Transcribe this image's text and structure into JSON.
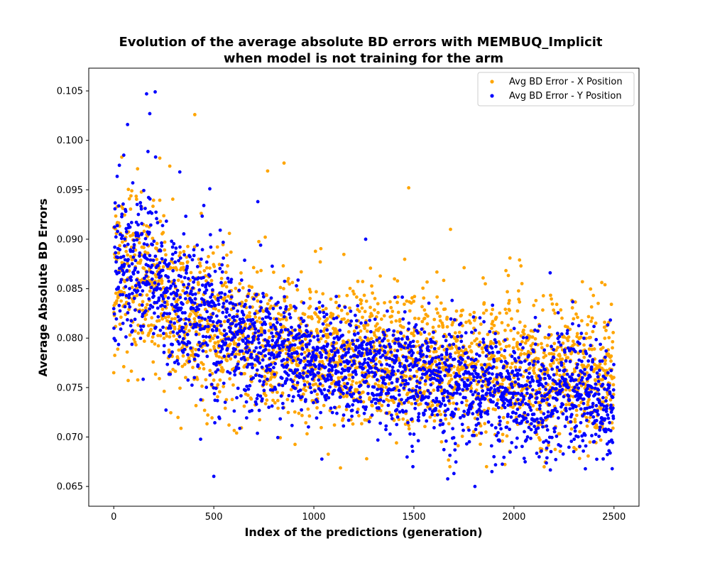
{
  "chart_data": {
    "type": "scatter",
    "title_lines": [
      "Evolution of the average absolute BD errors with MEMBUQ_Implicit",
      "when model is not training for the arm"
    ],
    "xlabel": "Index of the predictions (generation)",
    "ylabel": "Average Absolute BD Errors",
    "xlim": [
      -125,
      2625
    ],
    "ylim": [
      0.063,
      0.1073
    ],
    "xticks": [
      0,
      500,
      1000,
      1500,
      2000,
      2500
    ],
    "xtick_labels": [
      "0",
      "500",
      "1000",
      "1500",
      "2000",
      "2500"
    ],
    "yticks": [
      0.065,
      0.07,
      0.075,
      0.08,
      0.085,
      0.09,
      0.095,
      0.1,
      0.105
    ],
    "ytick_labels": [
      "0.065",
      "0.070",
      "0.075",
      "0.080",
      "0.085",
      "0.090",
      "0.095",
      "0.100",
      "0.105"
    ],
    "grid": false,
    "legend_position": "top-right",
    "n_points_per_series": 2500,
    "series": [
      {
        "name": "Avg BD Error - X Position",
        "color": "#FFA500",
        "trend": [
          [
            0,
            0.087
          ],
          [
            250,
            0.085
          ],
          [
            300,
            0.083
          ],
          [
            500,
            0.081
          ],
          [
            1000,
            0.0785
          ],
          [
            1500,
            0.078
          ],
          [
            2000,
            0.0765
          ],
          [
            2500,
            0.0765
          ]
        ],
        "spread": [
          [
            0,
            0.0045
          ],
          [
            500,
            0.004
          ],
          [
            1000,
            0.0035
          ],
          [
            2500,
            0.0035
          ]
        ],
        "outliers": [
          [
            405,
            0.1026
          ],
          [
            769,
            0.0969
          ],
          [
            851,
            0.0977
          ],
          [
            1474,
            0.0952
          ],
          [
            1683,
            0.091
          ],
          [
            1980,
            0.0881
          ],
          [
            2028,
            0.0879
          ],
          [
            2035,
            0.0873
          ],
          [
            2342,
            0.0857
          ],
          [
            2455,
            0.0854
          ],
          [
            1680,
            0.067
          ],
          [
            1863,
            0.067
          ],
          [
            1264,
            0.0678
          ],
          [
            0,
            0.0765
          ],
          [
            40,
            0.0983
          ],
          [
            230,
            0.0982
          ]
        ]
      },
      {
        "name": "Avg BD Error - Y Position",
        "color": "#0000FF",
        "trend": [
          [
            0,
            0.087
          ],
          [
            150,
            0.0875
          ],
          [
            250,
            0.0845
          ],
          [
            300,
            0.083
          ],
          [
            480,
            0.084
          ],
          [
            500,
            0.0805
          ],
          [
            1000,
            0.0775
          ],
          [
            1500,
            0.076
          ],
          [
            2000,
            0.0745
          ],
          [
            2500,
            0.074
          ]
        ],
        "spread": [
          [
            0,
            0.004
          ],
          [
            500,
            0.0035
          ],
          [
            1000,
            0.003
          ],
          [
            2500,
            0.003
          ]
        ],
        "outliers": [
          [
            164,
            0.1047
          ],
          [
            207,
            0.1049
          ],
          [
            180,
            0.1027
          ],
          [
            69,
            0.1016
          ],
          [
            50,
            0.0985
          ],
          [
            330,
            0.0968
          ],
          [
            1805,
            0.065
          ],
          [
            1890,
            0.0665
          ],
          [
            2181,
            0.0866
          ],
          [
            1259,
            0.09
          ],
          [
            720,
            0.0938
          ],
          [
            480,
            0.0951
          ],
          [
            1495,
            0.067
          ]
        ]
      }
    ]
  }
}
